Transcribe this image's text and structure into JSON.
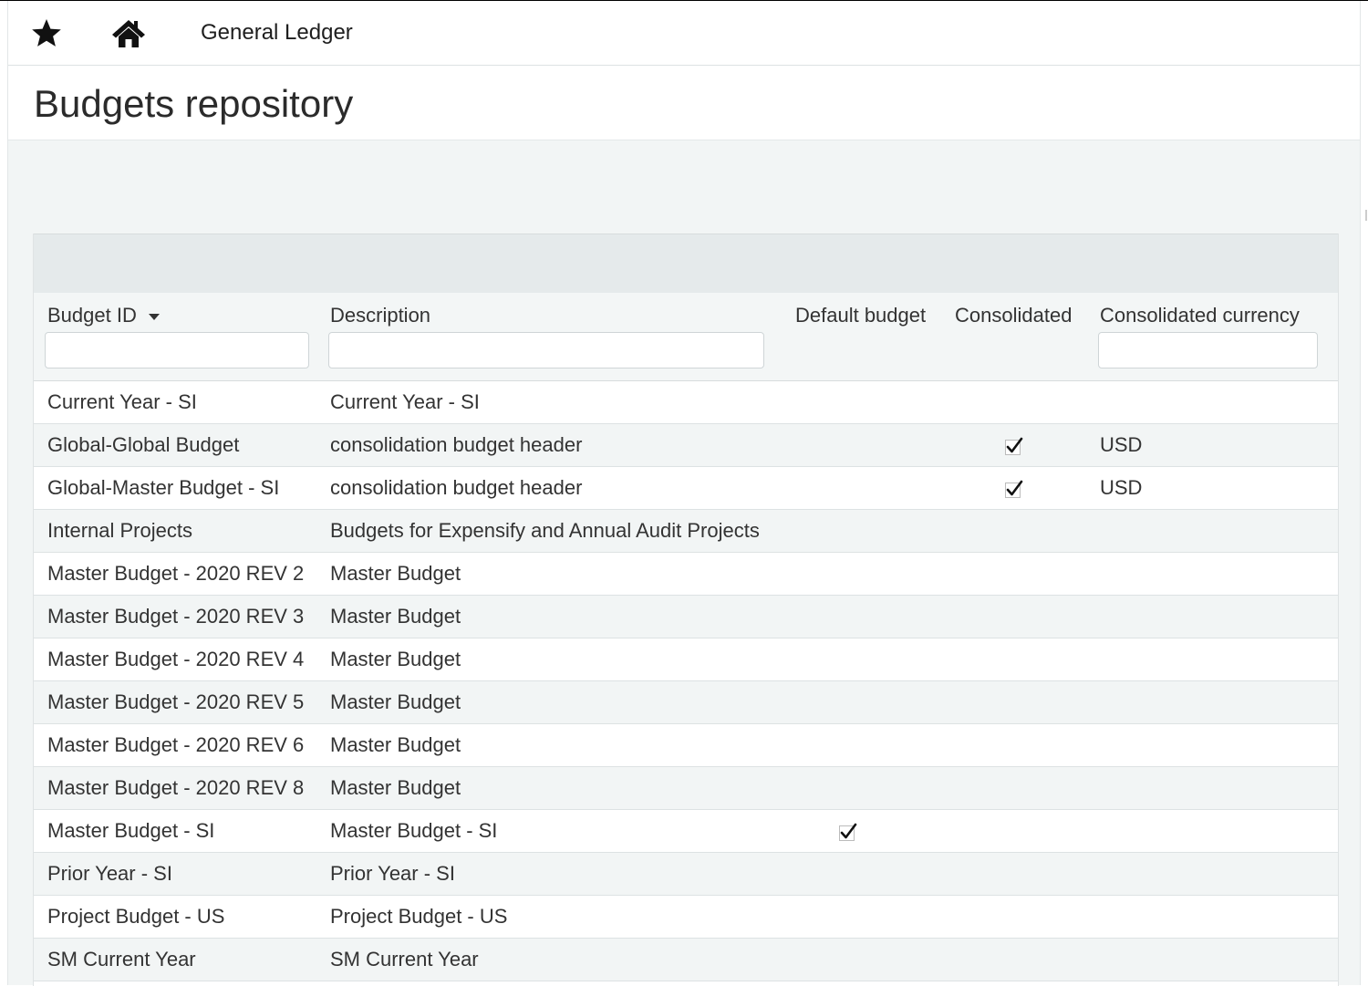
{
  "header": {
    "app_title": "General Ledger",
    "page_title": "Budgets repository"
  },
  "icons": {
    "favorite": "star-icon",
    "home": "home-icon",
    "sort": "sort-down-icon",
    "check": "checkmark-icon"
  },
  "columns": {
    "budget_id": "Budget ID",
    "description": "Description",
    "default_budget": "Default budget",
    "consolidated": "Consolidated",
    "consolidated_currency": "Consolidated currency"
  },
  "filters": {
    "budget_id": "",
    "description": "",
    "consolidated_currency": ""
  },
  "rows": [
    {
      "budget_id": "Current Year - SI",
      "description": "Current Year - SI",
      "default_budget": false,
      "consolidated": false,
      "currency": ""
    },
    {
      "budget_id": "Global-Global Budget",
      "description": "consolidation budget header",
      "default_budget": false,
      "consolidated": true,
      "currency": "USD"
    },
    {
      "budget_id": "Global-Master Budget - SI",
      "description": "consolidation budget header",
      "default_budget": false,
      "consolidated": true,
      "currency": "USD"
    },
    {
      "budget_id": "Internal Projects",
      "description": "Budgets for Expensify and Annual Audit Projects",
      "default_budget": false,
      "consolidated": false,
      "currency": ""
    },
    {
      "budget_id": "Master Budget - 2020 REV 2",
      "description": "Master Budget",
      "default_budget": false,
      "consolidated": false,
      "currency": ""
    },
    {
      "budget_id": "Master Budget - 2020 REV 3",
      "description": "Master Budget",
      "default_budget": false,
      "consolidated": false,
      "currency": ""
    },
    {
      "budget_id": "Master Budget - 2020 REV 4",
      "description": "Master Budget",
      "default_budget": false,
      "consolidated": false,
      "currency": ""
    },
    {
      "budget_id": "Master Budget - 2020 REV 5",
      "description": "Master Budget",
      "default_budget": false,
      "consolidated": false,
      "currency": ""
    },
    {
      "budget_id": "Master Budget - 2020 REV 6",
      "description": "Master Budget",
      "default_budget": false,
      "consolidated": false,
      "currency": ""
    },
    {
      "budget_id": "Master Budget - 2020 REV 8",
      "description": "Master Budget",
      "default_budget": false,
      "consolidated": false,
      "currency": ""
    },
    {
      "budget_id": "Master Budget - SI",
      "description": "Master Budget - SI",
      "default_budget": true,
      "consolidated": false,
      "currency": ""
    },
    {
      "budget_id": "Prior Year - SI",
      "description": "Prior Year - SI",
      "default_budget": false,
      "consolidated": false,
      "currency": ""
    },
    {
      "budget_id": "Project Budget - US",
      "description": "Project Budget - US",
      "default_budget": false,
      "consolidated": false,
      "currency": ""
    },
    {
      "budget_id": "SM Current Year",
      "description": "SM Current Year",
      "default_budget": false,
      "consolidated": false,
      "currency": ""
    }
  ]
}
